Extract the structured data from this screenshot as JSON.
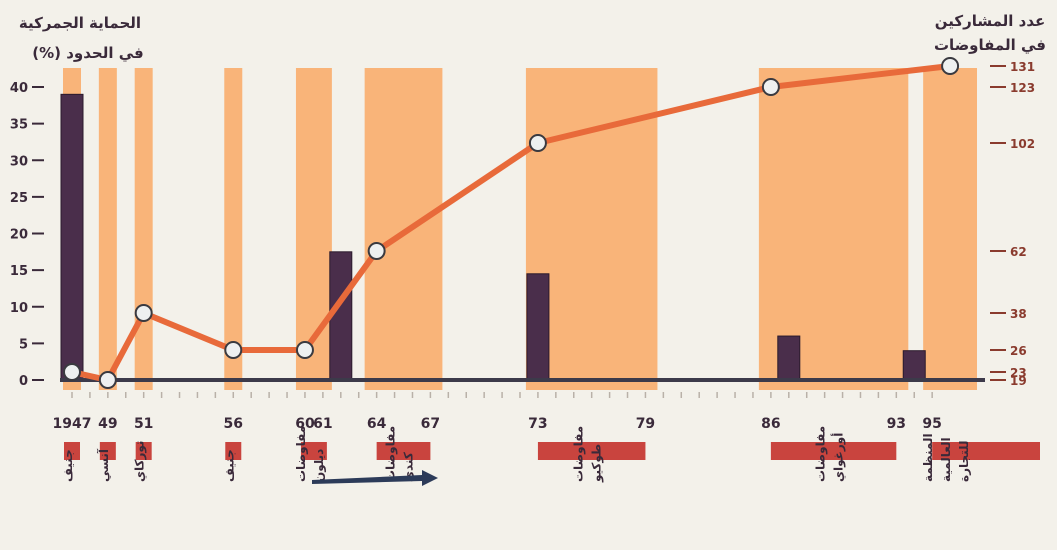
{
  "chart_data": {
    "type": "bar",
    "left_title_line1": "الحماية الجمركية",
    "left_title_line2": "في الحدود (%)",
    "right_title_line1": "عدد المشاركين",
    "right_title_line2": "في المفاوضات",
    "left_ticks": [
      "0",
      "5",
      "10",
      "15",
      "20",
      "25",
      "30",
      "35",
      "40"
    ],
    "right_ticks": [
      "19",
      "23",
      "26",
      "38",
      "62",
      "102",
      "123",
      "131"
    ],
    "year_labels": [
      "1947",
      "49",
      "51",
      "56",
      "60",
      "61",
      "64",
      "67",
      "73",
      "79",
      "86",
      "93",
      "95"
    ],
    "rounds": [
      {
        "start": 1947,
        "end": 1947,
        "name": "جنيف"
      },
      {
        "start": 1949,
        "end": 1949,
        "name": "آنسي"
      },
      {
        "start": 1951,
        "end": 1951,
        "name": "توركاي"
      },
      {
        "start": 1956,
        "end": 1956,
        "name": "جنيف"
      },
      {
        "start": 1960,
        "end": 1961,
        "name": "مفاوضات ديلون"
      },
      {
        "start": 1964,
        "end": 1967,
        "name": "مفاوضات كندي"
      },
      {
        "start": 1973,
        "end": 1979,
        "name": "مفاوضات طوكيو"
      },
      {
        "start": 1986,
        "end": 1993,
        "name": "مفاوضات أورغواي"
      },
      {
        "start": 1995,
        "end": 1997,
        "name": "المنظمة العالمية للتجارة"
      }
    ],
    "tariff_bars": [
      {
        "year": 1947,
        "value": 39
      },
      {
        "year": 1962,
        "value": 17.5
      },
      {
        "year": 1973,
        "value": 14.5
      },
      {
        "year": 1987,
        "value": 6
      },
      {
        "year": 1994,
        "value": 4
      }
    ],
    "participants": [
      {
        "year": 1947,
        "value": 23
      },
      {
        "year": 1949,
        "value": 19
      },
      {
        "year": 1951,
        "value": 38
      },
      {
        "year": 1956,
        "value": 26
      },
      {
        "year": 1960,
        "value": 26
      },
      {
        "year": 1964,
        "value": 62
      },
      {
        "year": 1973,
        "value": 102
      },
      {
        "year": 1986,
        "value": 123
      },
      {
        "year": 1996,
        "value": 131
      }
    ],
    "colors": {
      "background": "#f3f1ea",
      "round_band": "#f9b479",
      "bar": "#4a2e4b",
      "line": "#e86a3a",
      "axis": "#3c3a4a",
      "tick_text": "#3a2a3a",
      "round_marker": "#c9443e"
    }
  }
}
